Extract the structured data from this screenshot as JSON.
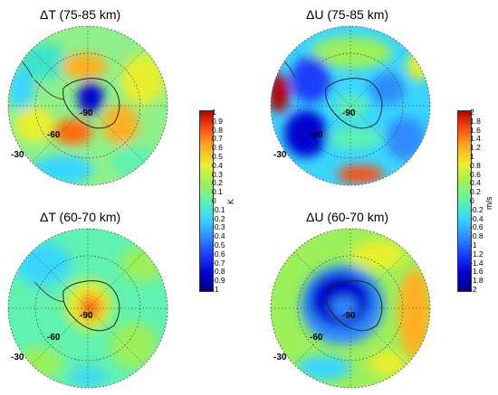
{
  "panels": [
    {
      "title": "ΔT (75-85 km)",
      "pole_label": "-90",
      "lat_labels": [
        "-60",
        "-30"
      ]
    },
    {
      "title": "ΔU (75-85 km)",
      "pole_label": "-90",
      "lat_labels": [
        "-60",
        "-30"
      ]
    },
    {
      "title": "ΔT (60-70 km)",
      "pole_label": "-90",
      "lat_labels": [
        "-60",
        "-30"
      ]
    },
    {
      "title": "ΔU (60-70 km)",
      "pole_label": "-90",
      "lat_labels": [
        "-60",
        "-30"
      ]
    }
  ],
  "colorbar_T": {
    "unit": "K",
    "ticks": [
      "1",
      "0.9",
      "0.8",
      "0.7",
      "0.6",
      "0.5",
      "0.4",
      "0.3",
      "0.2",
      "0.1",
      "0",
      "-0.1",
      "-0.2",
      "-0.3",
      "-0.4",
      "-0.5",
      "-0.6",
      "-0.7",
      "-0.8",
      "-0.9",
      "-1"
    ]
  },
  "colorbar_U": {
    "unit": "m/s",
    "ticks": [
      "2",
      "1.8",
      "1.6",
      "1.4",
      "1.2",
      "1",
      "0.8",
      "0.6",
      "0.4",
      "0.2",
      "0",
      "-0.2",
      "-0.4",
      "-0.6",
      "-0.8",
      "-1",
      "-1.2",
      "-1.4",
      "-1.6",
      "-1.8",
      "-2"
    ]
  },
  "colormap": [
    "#00007f",
    "#0000d0",
    "#1a3cff",
    "#2f8cff",
    "#38d6ff",
    "#5ff2b0",
    "#9cf05a",
    "#e8f02e",
    "#ffb020",
    "#ff5010",
    "#b80000"
  ]
}
